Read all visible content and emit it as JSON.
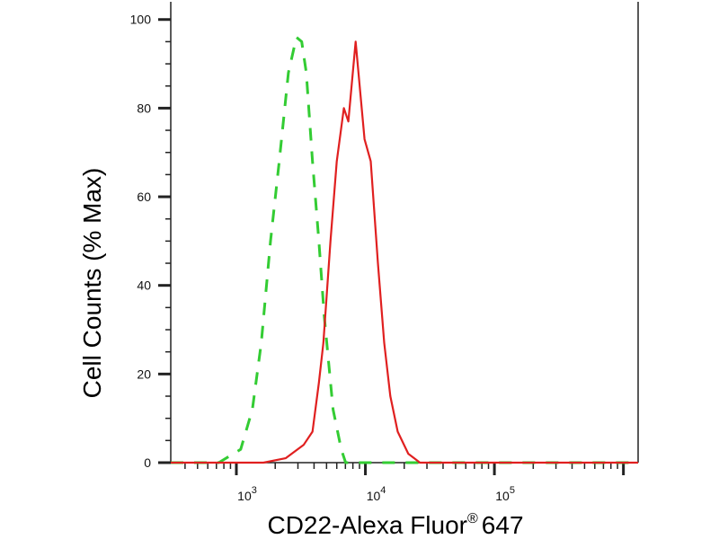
{
  "chart_data": {
    "type": "line",
    "title": "",
    "xlabel": "CD22-Alexa Fluor",
    "xlabel_superscript": "®",
    "xlabel_suffix": "647",
    "ylabel": "Cell Counts (% Max)",
    "x_scale": "log",
    "xlim": [
      310,
      1300000
    ],
    "ylim": [
      0,
      104
    ],
    "grid": false,
    "legend": "none",
    "x_ticks": [
      {
        "base": "10",
        "exp": "3",
        "value": 1000
      },
      {
        "base": "10",
        "exp": "4",
        "value": 10000
      },
      {
        "base": "10",
        "exp": "5",
        "value": 100000
      }
    ],
    "y_ticks": [
      "0",
      "20",
      "40",
      "60",
      "80",
      "100"
    ],
    "series": [
      {
        "color": "#33cc33",
        "style": "dashed",
        "x": [
          310,
          730,
          1080,
          1330,
          1560,
          1840,
          2150,
          2530,
          2920,
          3210,
          3480,
          3890,
          4360,
          4800,
          5620,
          6500,
          7030,
          1300000
        ],
        "y": [
          0,
          0,
          3,
          12,
          27,
          50,
          68,
          88,
          96,
          95,
          88,
          68,
          50,
          33,
          12,
          3,
          0,
          0
        ]
      },
      {
        "color": "#e02020",
        "style": "solid",
        "x": [
          310,
          1620,
          2410,
          3320,
          3890,
          4360,
          4720,
          5360,
          6000,
          6810,
          7380,
          8400,
          9840,
          11000,
          12500,
          14000,
          15600,
          17800,
          21500,
          26500,
          1300000
        ],
        "y": [
          0,
          0,
          1,
          4,
          7,
          18,
          27,
          50,
          68,
          80,
          77,
          95,
          73,
          68,
          45,
          27,
          15,
          7,
          2,
          0,
          0
        ]
      }
    ]
  }
}
